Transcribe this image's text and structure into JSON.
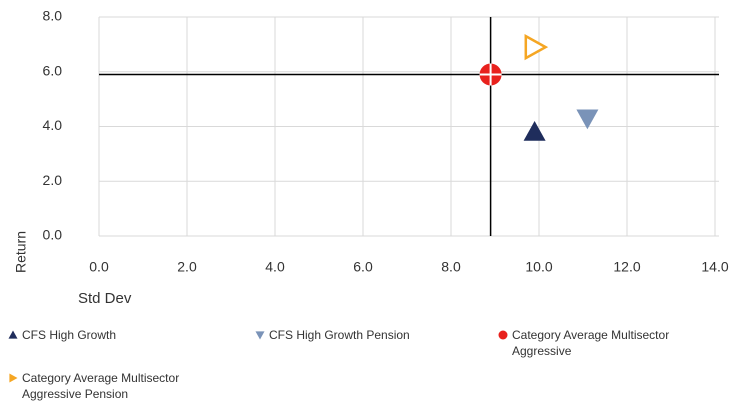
{
  "chart_data": {
    "type": "scatter",
    "x_label": "Std Dev",
    "y_label": "Return",
    "xlim": [
      0,
      14
    ],
    "xticks": [
      {
        "value": 0,
        "label": "0.0"
      },
      {
        "value": 2,
        "label": "2.0"
      },
      {
        "value": 4,
        "label": "4.0"
      },
      {
        "value": 6,
        "label": "6.0"
      },
      {
        "value": 8,
        "label": "8.0"
      },
      {
        "value": 10,
        "label": "10.0"
      },
      {
        "value": 12,
        "label": "12.0"
      },
      {
        "value": 14,
        "label": "14.0"
      }
    ],
    "ylim": [
      0,
      8
    ],
    "yticks": [
      {
        "value": 0,
        "label": "0.0"
      },
      {
        "value": 2,
        "label": "2.0"
      },
      {
        "value": 4,
        "label": "4.0"
      },
      {
        "value": 6,
        "label": "6.0"
      },
      {
        "value": 8,
        "label": "8.0"
      }
    ],
    "grid": true,
    "crosshair_series": 2,
    "series": [
      {
        "name": "CFS High Growth",
        "color": "#1f2d5c",
        "marker": "triangle-up",
        "x": [
          9.9
        ],
        "values": [
          3.8
        ]
      },
      {
        "name": "CFS High Growth Pension",
        "color": "#7a93b8",
        "marker": "triangle-down",
        "x": [
          11.1
        ],
        "values": [
          4.3
        ]
      },
      {
        "name": "Category Average Multisector Aggressive",
        "color": "#e8211d",
        "marker": "circle-cross",
        "x": [
          8.9
        ],
        "values": [
          5.9
        ]
      },
      {
        "name": "Category Average Multisector Aggressive Pension",
        "color": "#f5a623",
        "marker": "triangle-right-open",
        "x": [
          9.9
        ],
        "values": [
          6.9
        ]
      }
    ]
  }
}
